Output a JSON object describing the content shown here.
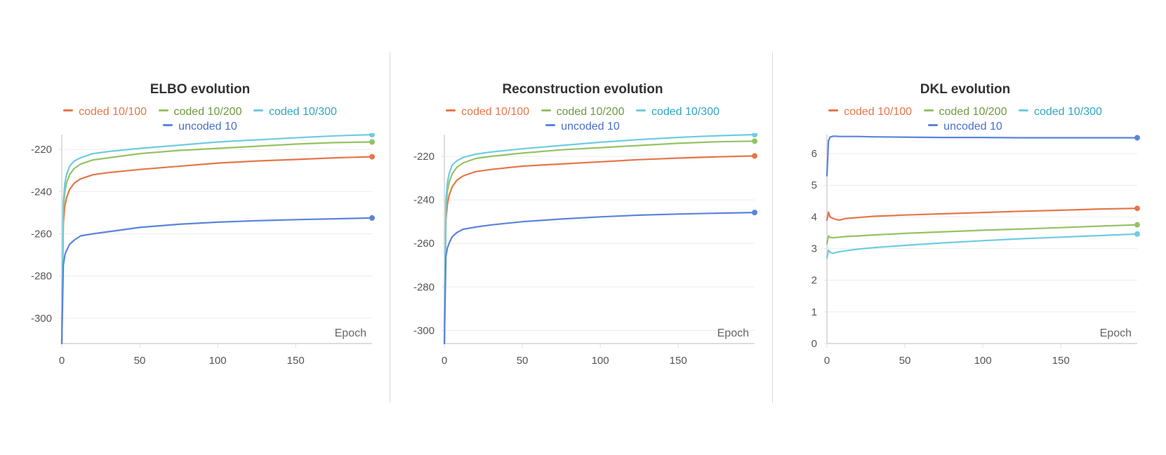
{
  "colors": {
    "coded_10_100": "#e4774a",
    "coded_10_200": "#96c265",
    "coded_10_300": "#6fcce0",
    "uncoded_10": "#5b84dc",
    "grid": "#ececec",
    "axis": "#dddddd"
  },
  "chart_data": [
    {
      "type": "line",
      "title": "ELBO evolution",
      "xlabel": "Epoch",
      "ylabel": "",
      "xlim": [
        0,
        199
      ],
      "ylim": [
        -312,
        -213
      ],
      "xticks": [
        0,
        50,
        100,
        150
      ],
      "yticks": [
        -220,
        -240,
        -260,
        -280,
        -300
      ],
      "legend": [
        "coded 10/100",
        "coded 10/200",
        "coded 10/300",
        "uncoded 10"
      ],
      "series": [
        {
          "name": "coded 10/100",
          "color_key": "coded_10_100",
          "x": [
            0,
            1,
            2,
            3,
            5,
            8,
            12,
            20,
            30,
            50,
            75,
            100,
            125,
            150,
            175,
            199
          ],
          "y": [
            -312,
            -255,
            -247,
            -243,
            -239,
            -236,
            -234,
            -232,
            -231,
            -229.5,
            -228,
            -226.5,
            -225.5,
            -224.8,
            -224,
            -223.5
          ]
        },
        {
          "name": "coded 10/200",
          "color_key": "coded_10_200",
          "x": [
            0,
            1,
            2,
            3,
            5,
            8,
            12,
            20,
            30,
            50,
            75,
            100,
            125,
            150,
            175,
            199
          ],
          "y": [
            -312,
            -248,
            -240,
            -236,
            -232,
            -229,
            -227,
            -225,
            -224,
            -222,
            -220.5,
            -219.5,
            -218.5,
            -217.5,
            -216.8,
            -216.5
          ]
        },
        {
          "name": "coded 10/300",
          "color_key": "coded_10_300",
          "x": [
            0,
            1,
            2,
            3,
            5,
            8,
            12,
            20,
            30,
            50,
            75,
            100,
            125,
            150,
            175,
            199
          ],
          "y": [
            -312,
            -245,
            -236,
            -232,
            -228,
            -225.5,
            -224,
            -222,
            -221,
            -219.5,
            -218,
            -216.5,
            -215.5,
            -214.5,
            -213.6,
            -213
          ]
        },
        {
          "name": "uncoded 10",
          "color_key": "uncoded_10",
          "x": [
            0,
            1,
            2,
            3,
            5,
            8,
            12,
            20,
            30,
            50,
            75,
            100,
            125,
            150,
            175,
            199
          ],
          "y": [
            -312,
            -275,
            -270,
            -268,
            -265,
            -263,
            -261,
            -260,
            -259,
            -257,
            -255.5,
            -254.5,
            -253.8,
            -253.3,
            -252.9,
            -252.5
          ]
        }
      ]
    },
    {
      "type": "line",
      "title": "Reconstruction evolution",
      "xlabel": "Epoch",
      "ylabel": "",
      "xlim": [
        0,
        199
      ],
      "ylim": [
        -306,
        -210
      ],
      "xticks": [
        0,
        50,
        100,
        150
      ],
      "yticks": [
        -220,
        -240,
        -260,
        -280,
        -300
      ],
      "legend": [
        "coded 10/100",
        "coded 10/200",
        "coded 10/300",
        "uncoded 10"
      ],
      "series": [
        {
          "name": "coded 10/100",
          "color_key": "coded_10_100",
          "x": [
            0,
            1,
            2,
            3,
            5,
            8,
            12,
            20,
            30,
            50,
            75,
            100,
            125,
            150,
            175,
            199
          ],
          "y": [
            -306,
            -249,
            -242,
            -238,
            -234,
            -231,
            -229,
            -227,
            -226,
            -224.5,
            -223.5,
            -222.5,
            -221.5,
            -220.8,
            -220.2,
            -219.8
          ]
        },
        {
          "name": "coded 10/200",
          "color_key": "coded_10_200",
          "x": [
            0,
            1,
            2,
            3,
            5,
            8,
            12,
            20,
            30,
            50,
            75,
            100,
            125,
            150,
            175,
            199
          ],
          "y": [
            -306,
            -244,
            -236,
            -232,
            -228,
            -225,
            -223,
            -221,
            -220,
            -218.5,
            -217,
            -216,
            -215,
            -214,
            -213.3,
            -213
          ]
        },
        {
          "name": "coded 10/300",
          "color_key": "coded_10_300",
          "x": [
            0,
            1,
            2,
            3,
            5,
            8,
            12,
            20,
            30,
            50,
            75,
            100,
            125,
            150,
            175,
            199
          ],
          "y": [
            -306,
            -240,
            -232,
            -228,
            -224,
            -222,
            -220.5,
            -219,
            -218,
            -216.5,
            -215,
            -213.5,
            -212.3,
            -211.3,
            -210.5,
            -210
          ]
        },
        {
          "name": "uncoded 10",
          "color_key": "uncoded_10",
          "x": [
            0,
            1,
            2,
            3,
            5,
            8,
            12,
            20,
            30,
            50,
            75,
            100,
            125,
            150,
            175,
            199
          ],
          "y": [
            -306,
            -266,
            -262,
            -260,
            -257,
            -255,
            -253.5,
            -252.5,
            -251.5,
            -250,
            -248.8,
            -247.8,
            -247,
            -246.5,
            -246.1,
            -245.8
          ]
        }
      ]
    },
    {
      "type": "line",
      "title": "DKL evolution",
      "xlabel": "Epoch",
      "ylabel": "",
      "xlim": [
        0,
        199
      ],
      "ylim": [
        0,
        6.6
      ],
      "xticks": [
        0,
        50,
        100,
        150
      ],
      "yticks": [
        0,
        1,
        2,
        3,
        4,
        5,
        6
      ],
      "legend": [
        "coded 10/100",
        "coded 10/200",
        "coded 10/300",
        "uncoded 10"
      ],
      "series": [
        {
          "name": "coded 10/100",
          "color_key": "coded_10_100",
          "x": [
            0,
            1,
            2,
            4,
            6,
            8,
            12,
            20,
            30,
            50,
            75,
            100,
            125,
            150,
            175,
            199
          ],
          "y": [
            3.9,
            4.15,
            4.0,
            3.95,
            3.92,
            3.9,
            3.95,
            3.98,
            4.02,
            4.06,
            4.1,
            4.14,
            4.18,
            4.21,
            4.25,
            4.27
          ]
        },
        {
          "name": "coded 10/200",
          "color_key": "coded_10_200",
          "x": [
            0,
            1,
            2,
            4,
            6,
            8,
            12,
            20,
            30,
            50,
            75,
            100,
            125,
            150,
            175,
            199
          ],
          "y": [
            3.15,
            3.4,
            3.35,
            3.34,
            3.35,
            3.36,
            3.38,
            3.4,
            3.43,
            3.48,
            3.53,
            3.58,
            3.62,
            3.66,
            3.71,
            3.75
          ]
        },
        {
          "name": "coded 10/300",
          "color_key": "coded_10_300",
          "x": [
            0,
            1,
            2,
            4,
            6,
            8,
            12,
            20,
            30,
            50,
            75,
            100,
            125,
            150,
            175,
            199
          ],
          "y": [
            2.7,
            2.95,
            2.88,
            2.85,
            2.88,
            2.9,
            2.93,
            2.98,
            3.03,
            3.1,
            3.18,
            3.25,
            3.31,
            3.36,
            3.41,
            3.46
          ]
        },
        {
          "name": "uncoded 10",
          "color_key": "uncoded_10",
          "x": [
            0,
            1,
            2,
            4,
            6,
            8,
            12,
            20,
            30,
            50,
            75,
            100,
            125,
            150,
            175,
            199
          ],
          "y": [
            5.3,
            6.4,
            6.52,
            6.55,
            6.55,
            6.54,
            6.54,
            6.54,
            6.53,
            6.52,
            6.51,
            6.51,
            6.5,
            6.5,
            6.5,
            6.5
          ]
        }
      ]
    }
  ]
}
